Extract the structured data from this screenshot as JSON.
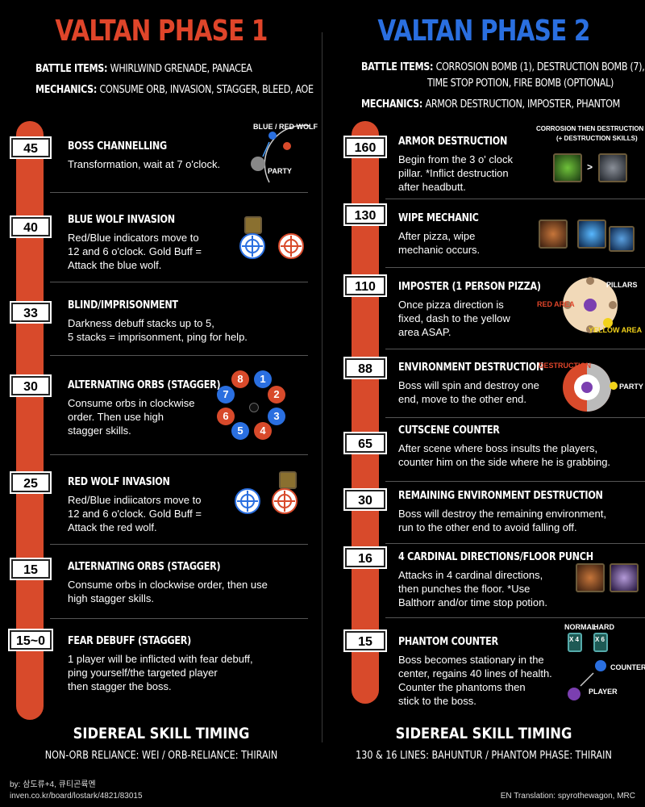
{
  "left": {
    "title": "VALTAN PHASE 1",
    "battle_items_label": "BATTLE ITEMS:",
    "battle_items": "WHIRLWIND GRENADE, PANACEA",
    "mechanics_label": "MECHANICS:",
    "mechanics": "CONSUME ORB, INVASION, STAGGER, BLEED, AOE",
    "events": [
      {
        "hp": "45",
        "title": "BOSS CHANNELLING",
        "desc": "Transformation, wait at 7 o'clock."
      },
      {
        "hp": "40",
        "title": "BLUE WOLF INVASION",
        "desc": "Red/Blue indicators move to\n12 and 6 o'clock. Gold Buff =\nAttack the blue wolf."
      },
      {
        "hp": "33",
        "title": "BLIND/IMPRISONMENT",
        "desc": "Darkness debuff stacks up to 5,\n5 stacks = imprisonment, ping for help."
      },
      {
        "hp": "30",
        "title": "ALTERNATING ORBS (STAGGER)",
        "desc": "Consume orbs in clockwise\norder. Then use high\nstagger skills."
      },
      {
        "hp": "25",
        "title": "RED WOLF INVASION",
        "desc": "Red/Blue indiicators move to\n12 and 6 o'clock. Gold Buff =\nAttack the red wolf."
      },
      {
        "hp": "15",
        "title": "ALTERNATING ORBS (STAGGER)",
        "desc": "Consume orbs in clockwise order, then use\nhigh stagger skills."
      },
      {
        "hp": "15~0",
        "title": "FEAR DEBUFF (STAGGER)",
        "desc": "1 player will be inflicted with fear debuff,\nping yourself/the targeted player\nthen stagger the boss."
      }
    ],
    "icon_labels": {
      "wolf": "BLUE / RED WOLF",
      "party": "PARTY"
    },
    "orbs": [
      "8",
      "1",
      "2",
      "3",
      "4",
      "5",
      "6",
      "7"
    ],
    "footer_title": "SIDEREAL SKILL TIMING",
    "footer_sub": "NON-ORB RELIANCE: WEI  / ORB-RELIANCE: THIRAIN"
  },
  "right": {
    "title": "VALTAN PHASE 2",
    "battle_items_label": "BATTLE ITEMS:",
    "battle_items": "CORROSION BOMB (1), DESTRUCTION BOMB (7),",
    "battle_items_2": "TIME STOP POTION, FIRE BOMB (OPTIONAL)",
    "mechanics_label": "MECHANICS:",
    "mechanics": "ARMOR DESTRUCTION, IMPOSTER, PHANTOM",
    "events": [
      {
        "hp": "160",
        "title": "ARMOR DESTRUCTION",
        "desc": "Begin from the 3 o' clock\npillar. *Inflict destruction\nafter headbutt."
      },
      {
        "hp": "130",
        "title": "WIPE MECHANIC",
        "desc": "After pizza, wipe\nmechanic occurs."
      },
      {
        "hp": "110",
        "title": "IMPOSTER (1 PERSON PIZZA)",
        "desc": "Once pizza direction is\nfixed, dash to the yellow\narea ASAP."
      },
      {
        "hp": "88",
        "title": "ENVIRONMENT DESTRUCTION",
        "desc": "Boss will spin and destroy one\nend, move to the other end."
      },
      {
        "hp": "65",
        "title": "CUTSCENE COUNTER",
        "desc": "After scene where boss insults the players,\ncounter him on the side where he is grabbing."
      },
      {
        "hp": "30",
        "title": "REMAINING ENVIRONMENT DESTRUCTION",
        "desc": "Boss will destroy the remaining environment,\nrun to the other end to avoid falling off."
      },
      {
        "hp": "16",
        "title": "4 CARDINAL DIRECTIONS/FLOOR PUNCH",
        "desc": "Attacks in 4 cardinal directions,\nthen punches the floor. *Use\nBalthorr and/or time stop potion."
      },
      {
        "hp": "15",
        "title": "PHANTOM COUNTER",
        "desc": "Boss becomes stationary in the\ncenter, regains 40 lines of health.\nCounter the phantoms then\nstick to the boss."
      }
    ],
    "icon_labels": {
      "corrosion": "CORROSION THEN DESTRUCTION",
      "corrosion_sub": "(+ DESTRUCTION SKILLS)",
      "pillars": "PILLARS",
      "red_area": "RED AREA",
      "yellow_area": "YELLOW AREA",
      "destruction": "DESTRUCTION",
      "party": "PARTY",
      "normal": "NORMAL",
      "hard": "HARD",
      "x4": "X 4",
      "x6": "X 6",
      "counter": "COUNTER",
      "player": "PLAYER",
      "arrow": ">"
    },
    "footer_title": "SIDEREAL SKILL TIMING",
    "footer_sub": "130 & 16 LINES: BAHUNTUR / PHANTOM PHASE: THIRAIN"
  },
  "credits": {
    "by": "by: 삼도류+4, 큐티곤륙멘",
    "url": "inven.co.kr/board/lostark/4821/83015",
    "translation": "EN Translation: spyrothewagon, MRC"
  },
  "colors": {
    "red": "#d84a2b",
    "blue": "#2a6fe0",
    "title_red": "#e0452a"
  }
}
